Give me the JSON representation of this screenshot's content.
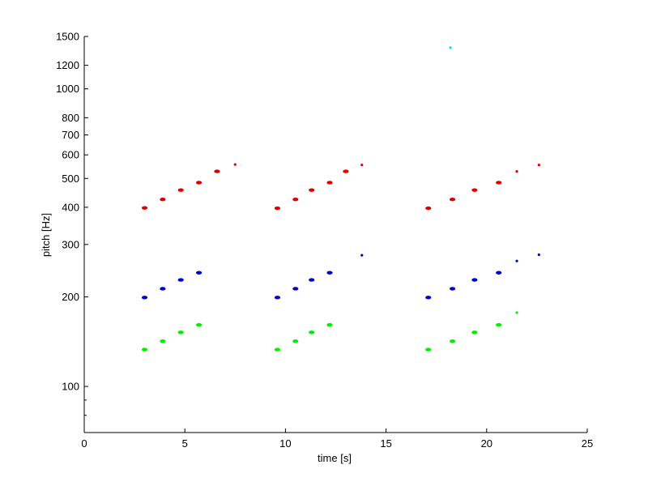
{
  "chart_data": {
    "type": "scatter",
    "title": "",
    "xlabel": "time [s]",
    "ylabel": "pitch [Hz]",
    "xlim": [
      0,
      25
    ],
    "ylim": [
      70,
      1500
    ],
    "yscale": "log",
    "grid": false,
    "legend": "none",
    "x_ticks": [
      0,
      5,
      10,
      15,
      20,
      25
    ],
    "x_tick_labels": [
      "0",
      "5",
      "10",
      "15",
      "20",
      "25"
    ],
    "y_ticks": [
      100,
      200,
      300,
      400,
      500,
      600,
      700,
      800,
      1000,
      1200,
      1500
    ],
    "y_tick_labels": [
      "100",
      "200",
      "300",
      "400",
      "500",
      "600",
      "700",
      "800",
      "1000",
      "1200",
      "1500"
    ],
    "y_minor_ticks": [
      80,
      90
    ],
    "series": [
      {
        "color": "#dd0000",
        "points": [
          [
            3.0,
            398
          ],
          [
            3.9,
            425
          ],
          [
            4.8,
            457
          ],
          [
            5.7,
            484
          ],
          [
            6.6,
            528
          ],
          [
            7.5,
            557
          ],
          [
            9.6,
            397
          ],
          [
            10.5,
            425
          ],
          [
            11.3,
            457
          ],
          [
            12.2,
            484
          ],
          [
            13.0,
            528
          ],
          [
            13.8,
            555
          ],
          [
            17.1,
            397
          ],
          [
            18.3,
            425
          ],
          [
            19.4,
            457
          ],
          [
            20.6,
            484
          ],
          [
            21.5,
            528
          ],
          [
            22.6,
            555
          ]
        ]
      },
      {
        "color": "#0000cc",
        "points": [
          [
            3.0,
            199
          ],
          [
            3.9,
            213
          ],
          [
            4.8,
            228
          ],
          [
            5.7,
            241
          ],
          [
            9.6,
            199
          ],
          [
            10.5,
            213
          ],
          [
            11.3,
            228
          ],
          [
            12.2,
            241
          ],
          [
            13.8,
            276
          ],
          [
            17.1,
            199
          ],
          [
            18.3,
            213
          ],
          [
            19.4,
            228
          ],
          [
            20.6,
            241
          ],
          [
            21.5,
            264
          ],
          [
            22.6,
            277
          ]
        ]
      },
      {
        "color": "#00ee00",
        "points": [
          [
            3.0,
            133
          ],
          [
            3.9,
            142
          ],
          [
            4.8,
            152
          ],
          [
            5.7,
            161
          ],
          [
            9.6,
            133
          ],
          [
            10.5,
            142
          ],
          [
            11.3,
            152
          ],
          [
            12.2,
            161
          ],
          [
            17.1,
            133
          ],
          [
            18.3,
            142
          ],
          [
            19.4,
            152
          ],
          [
            20.6,
            161
          ],
          [
            21.5,
            177
          ]
        ]
      },
      {
        "color": "#00e5ee",
        "points": [
          [
            18.2,
            1375
          ]
        ]
      }
    ]
  }
}
